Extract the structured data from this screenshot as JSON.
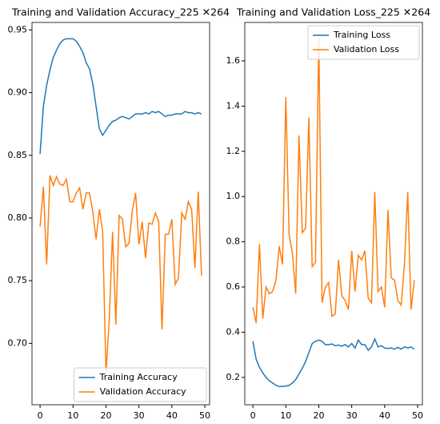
{
  "chart_data": [
    {
      "type": "line",
      "title": "Training and Validation Accuracy_225 ✕264",
      "x": [
        0,
        1,
        2,
        3,
        4,
        5,
        6,
        7,
        8,
        9,
        10,
        11,
        12,
        13,
        14,
        15,
        16,
        17,
        18,
        19,
        20,
        21,
        22,
        23,
        24,
        25,
        26,
        27,
        28,
        29,
        30,
        31,
        32,
        33,
        34,
        35,
        36,
        37,
        38,
        39,
        40,
        41,
        42,
        43,
        44,
        45,
        46,
        47,
        48,
        49
      ],
      "series": [
        {
          "name": "Training Accuracy",
          "color": "#1f77b4",
          "values": [
            0.851,
            0.889,
            0.906,
            0.918,
            0.928,
            0.934,
            0.939,
            0.942,
            0.943,
            0.943,
            0.943,
            0.941,
            0.937,
            0.932,
            0.924,
            0.919,
            0.907,
            0.889,
            0.871,
            0.866,
            0.87,
            0.874,
            0.877,
            0.878,
            0.88,
            0.881,
            0.88,
            0.879,
            0.881,
            0.883,
            0.883,
            0.883,
            0.884,
            0.883,
            0.885,
            0.884,
            0.885,
            0.883,
            0.881,
            0.882,
            0.882,
            0.883,
            0.883,
            0.883,
            0.885,
            0.884,
            0.884,
            0.883,
            0.884,
            0.883
          ]
        },
        {
          "name": "Validation Accuracy",
          "color": "#ff7f0e",
          "values": [
            0.793,
            0.825,
            0.763,
            0.834,
            0.826,
            0.833,
            0.827,
            0.826,
            0.831,
            0.813,
            0.813,
            0.82,
            0.824,
            0.807,
            0.82,
            0.82,
            0.805,
            0.783,
            0.807,
            0.789,
            0.676,
            0.719,
            0.789,
            0.715,
            0.802,
            0.799,
            0.777,
            0.78,
            0.806,
            0.82,
            0.779,
            0.797,
            0.768,
            0.796,
            0.795,
            0.804,
            0.797,
            0.711,
            0.787,
            0.787,
            0.799,
            0.747,
            0.752,
            0.804,
            0.799,
            0.813,
            0.807,
            0.76,
            0.821,
            0.754
          ]
        }
      ],
      "xlim": [
        -2.45,
        51.45
      ],
      "xticks": [
        0,
        10,
        20,
        30,
        40,
        50
      ],
      "ylim": [
        0.651,
        0.956
      ],
      "yticks": [
        {
          "value": 0.7,
          "label": "0.70"
        },
        {
          "value": 0.75,
          "label": "0.75"
        },
        {
          "value": 0.8,
          "label": "0.80"
        },
        {
          "value": 0.85,
          "label": "0.85"
        },
        {
          "value": 0.9,
          "label": "0.90"
        },
        {
          "value": 0.95,
          "label": "0.95"
        }
      ],
      "legend": "lower right"
    },
    {
      "type": "line",
      "title": "Training and Validation Loss_225 ✕264",
      "x": [
        0,
        1,
        2,
        3,
        4,
        5,
        6,
        7,
        8,
        9,
        10,
        11,
        12,
        13,
        14,
        15,
        16,
        17,
        18,
        19,
        20,
        21,
        22,
        23,
        24,
        25,
        26,
        27,
        28,
        29,
        30,
        31,
        32,
        33,
        34,
        35,
        36,
        37,
        38,
        39,
        40,
        41,
        42,
        43,
        44,
        45,
        46,
        47,
        48,
        49
      ],
      "series": [
        {
          "name": "Training Loss",
          "color": "#1f77b4",
          "values": [
            0.36,
            0.28,
            0.245,
            0.22,
            0.2,
            0.185,
            0.175,
            0.165,
            0.16,
            0.16,
            0.162,
            0.165,
            0.175,
            0.19,
            0.215,
            0.24,
            0.27,
            0.31,
            0.35,
            0.36,
            0.365,
            0.36,
            0.345,
            0.345,
            0.348,
            0.34,
            0.343,
            0.338,
            0.345,
            0.335,
            0.35,
            0.33,
            0.365,
            0.345,
            0.345,
            0.32,
            0.335,
            0.37,
            0.335,
            0.34,
            0.33,
            0.328,
            0.33,
            0.325,
            0.333,
            0.325,
            0.335,
            0.33,
            0.335,
            0.325
          ]
        },
        {
          "name": "Validation Loss",
          "color": "#ff7f0e",
          "values": [
            0.51,
            0.44,
            0.79,
            0.46,
            0.6,
            0.57,
            0.58,
            0.63,
            0.78,
            0.7,
            1.44,
            0.83,
            0.75,
            0.57,
            1.27,
            0.84,
            0.86,
            1.35,
            0.69,
            0.71,
            1.7,
            0.53,
            0.6,
            0.62,
            0.47,
            0.48,
            0.72,
            0.56,
            0.54,
            0.5,
            0.76,
            0.58,
            0.74,
            0.72,
            0.76,
            0.55,
            0.53,
            1.02,
            0.58,
            0.6,
            0.51,
            0.94,
            0.64,
            0.63,
            0.54,
            0.52,
            0.7,
            1.02,
            0.5,
            0.63
          ]
        }
      ],
      "xlim": [
        -2.45,
        51.45
      ],
      "xticks": [
        0,
        10,
        20,
        30,
        40,
        50
      ],
      "ylim": [
        0.079,
        1.77
      ],
      "yticks": [
        0.2,
        0.4,
        0.6,
        0.8,
        {
          "value": 1.0,
          "label": "1.0"
        },
        1.2,
        1.4,
        1.6
      ],
      "legend": "upper right"
    }
  ]
}
